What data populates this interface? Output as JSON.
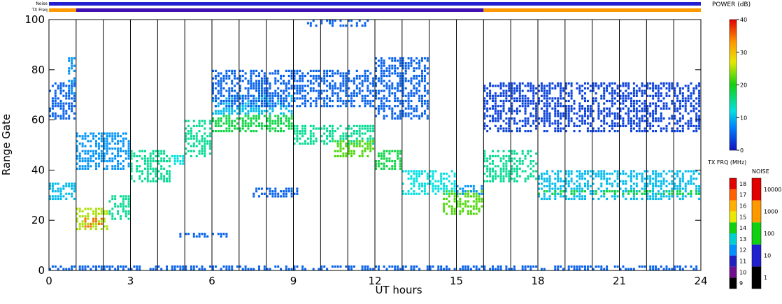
{
  "chart_data": {
    "type": "range-time",
    "x_label": "UT hours",
    "y_label": "Range Gate",
    "xlim": [
      0,
      24
    ],
    "xticks": [
      0,
      3,
      6,
      9,
      12,
      15,
      18,
      21,
      24
    ],
    "ylim": [
      0,
      100
    ],
    "yticks": [
      0,
      20,
      40,
      60,
      80,
      100
    ],
    "hour_lines": [
      1,
      2,
      3,
      4,
      5,
      6,
      7,
      8,
      9,
      10,
      11,
      12,
      13,
      14,
      15,
      16,
      17,
      18,
      19,
      20,
      21,
      22,
      23
    ],
    "noise_label": "Noise",
    "txfreq_label": "TX Freq",
    "noise_bar": {
      "color": "#2020d0",
      "segments": [
        [
          0,
          24
        ]
      ]
    },
    "txfreq_bar": [
      {
        "start": 0,
        "end": 1,
        "color": "#ff9900"
      },
      {
        "start": 1,
        "end": 16,
        "color": "#4010b0"
      },
      {
        "start": 16,
        "end": 24,
        "color": "#ff9900"
      }
    ],
    "patches": [
      [
        0,
        1,
        28,
        35,
        10
      ],
      [
        0,
        1,
        60,
        75,
        5
      ],
      [
        0.7,
        1,
        70,
        85,
        8
      ],
      [
        1,
        2.2,
        16,
        25,
        25
      ],
      [
        1.3,
        2,
        17,
        21,
        35
      ],
      [
        2.2,
        3,
        20,
        30,
        15
      ],
      [
        1,
        3,
        40,
        55,
        8
      ],
      [
        3,
        4.5,
        35,
        48,
        15
      ],
      [
        4.5,
        5,
        42,
        46,
        12
      ],
      [
        5,
        6,
        45,
        60,
        15
      ],
      [
        6,
        9,
        55,
        62,
        18
      ],
      [
        6,
        9,
        62,
        70,
        10
      ],
      [
        9,
        12,
        50,
        58,
        15
      ],
      [
        10.5,
        12,
        45,
        52,
        22
      ],
      [
        12,
        13,
        40,
        48,
        18
      ],
      [
        13,
        15,
        30,
        40,
        12
      ],
      [
        14.5,
        16,
        22,
        32,
        22
      ],
      [
        15,
        16,
        30,
        34,
        8
      ],
      [
        7.5,
        9.2,
        29,
        33,
        5
      ],
      [
        4.8,
        6.6,
        13,
        15,
        5
      ],
      [
        16,
        18,
        35,
        48,
        15
      ],
      [
        18,
        24,
        28,
        40,
        10
      ],
      [
        18,
        24,
        30,
        32,
        18
      ],
      [
        12,
        14,
        60,
        85,
        5
      ],
      [
        16,
        24,
        55,
        75,
        3
      ],
      [
        0,
        24,
        0,
        2,
        5
      ],
      [
        6,
        12,
        65,
        80,
        5
      ],
      [
        9.5,
        11.8,
        97,
        100,
        5
      ]
    ],
    "power_colorbar": {
      "title": "POWER (dB)",
      "lim": [
        0,
        40
      ],
      "ticks": [
        0,
        10,
        20,
        30,
        40
      ],
      "colormap": [
        [
          0,
          "#1010c0"
        ],
        [
          7,
          "#0080ff"
        ],
        [
          12,
          "#00e0e0"
        ],
        [
          20,
          "#10d010"
        ],
        [
          27,
          "#e8e800"
        ],
        [
          33,
          "#ff9900"
        ],
        [
          40,
          "#e00000"
        ]
      ]
    },
    "txfrq_colorbar": {
      "title": "TX FRQ (MHz)",
      "labels": [
        "9",
        "10",
        "11",
        "12",
        "13",
        "14",
        "15",
        "16",
        "17",
        "18"
      ],
      "colors": [
        "#000000",
        "#701090",
        "#2020c0",
        "#0090ff",
        "#00d0d0",
        "#10d010",
        "#e8e800",
        "#ffb000",
        "#ff6000",
        "#e00000"
      ]
    },
    "noise_colorbar": {
      "title": "NOISE",
      "labels": [
        "1",
        "10",
        "100",
        "1000",
        "10000"
      ],
      "colors": [
        "#000000",
        "#2020d0",
        "#10d010",
        "#ff9900",
        "#e00000"
      ]
    }
  }
}
